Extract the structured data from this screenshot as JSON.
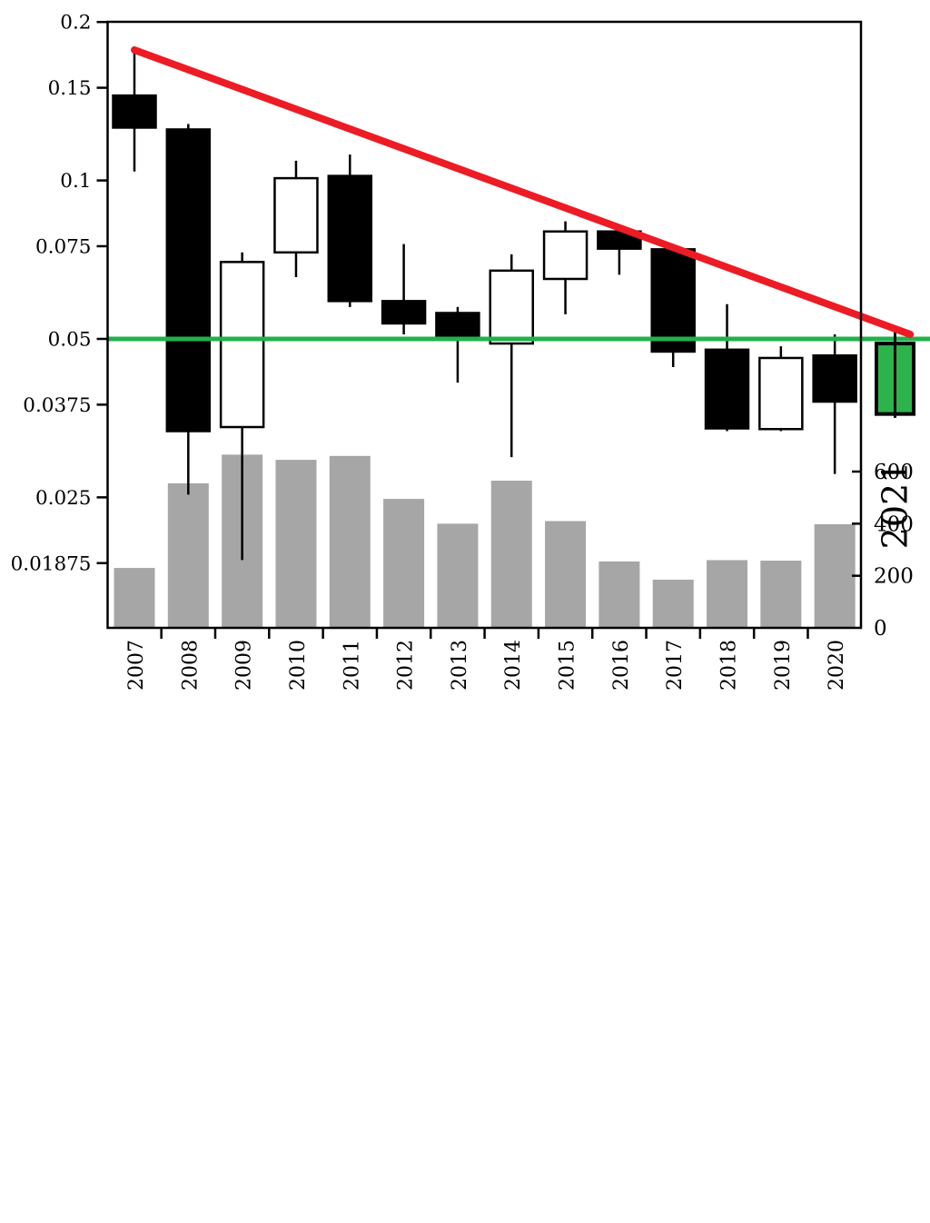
{
  "chart_data": {
    "type": "candlestick",
    "title": "",
    "x_years": [
      "2007",
      "2008",
      "2009",
      "2010",
      "2011",
      "2012",
      "2013",
      "2014",
      "2015",
      "2016",
      "2017",
      "2018",
      "2019",
      "2020"
    ],
    "last_year_label": "2021",
    "candles": [
      {
        "year": 2007,
        "open": 0.145,
        "high": 0.177,
        "low": 0.104,
        "close": 0.126,
        "direction": "down"
      },
      {
        "year": 2008,
        "open": 0.125,
        "high": 0.128,
        "low": 0.0253,
        "close": 0.0334,
        "direction": "down"
      },
      {
        "year": 2009,
        "open": 0.034,
        "high": 0.073,
        "low": 0.019,
        "close": 0.07,
        "direction": "up"
      },
      {
        "year": 2010,
        "open": 0.073,
        "high": 0.109,
        "low": 0.0655,
        "close": 0.101,
        "direction": "up"
      },
      {
        "year": 2011,
        "open": 0.102,
        "high": 0.112,
        "low": 0.0575,
        "close": 0.059,
        "direction": "down"
      },
      {
        "year": 2012,
        "open": 0.059,
        "high": 0.0757,
        "low": 0.051,
        "close": 0.0535,
        "direction": "down"
      },
      {
        "year": 2013,
        "open": 0.056,
        "high": 0.0575,
        "low": 0.0413,
        "close": 0.05,
        "direction": "down"
      },
      {
        "year": 2014,
        "open": 0.049,
        "high": 0.0724,
        "low": 0.0298,
        "close": 0.0674,
        "direction": "up"
      },
      {
        "year": 2015,
        "open": 0.065,
        "high": 0.0836,
        "low": 0.0557,
        "close": 0.08,
        "direction": "up"
      },
      {
        "year": 2016,
        "open": 0.08,
        "high": 0.08,
        "low": 0.0662,
        "close": 0.0742,
        "direction": "down"
      },
      {
        "year": 2017,
        "open": 0.074,
        "high": 0.074,
        "low": 0.0442,
        "close": 0.0473,
        "direction": "down"
      },
      {
        "year": 2018,
        "open": 0.0477,
        "high": 0.0582,
        "low": 0.0334,
        "close": 0.0338,
        "direction": "down"
      },
      {
        "year": 2019,
        "open": 0.0337,
        "high": 0.0484,
        "low": 0.0334,
        "close": 0.046,
        "direction": "up"
      },
      {
        "year": 2020,
        "open": 0.0465,
        "high": 0.051,
        "low": 0.0277,
        "close": 0.038,
        "direction": "down"
      },
      {
        "year": 2021,
        "open": 0.036,
        "high": 0.0524,
        "low": 0.0354,
        "close": 0.049,
        "direction": "up-highlight"
      }
    ],
    "volume": {
      "values": [
        230,
        555,
        665,
        645,
        660,
        495,
        400,
        565,
        410,
        255,
        185,
        260,
        258,
        398,
        null
      ],
      "axis_tick_labels": [
        "600",
        "400",
        "200",
        "0"
      ],
      "axis_tick_values": [
        600,
        400,
        200,
        0
      ]
    },
    "left_axis": {
      "scale": "log",
      "tick_labels": [
        "0.2",
        "0.15",
        "0.1",
        "0.075",
        "0.05",
        "0.0375",
        "0.025",
        "0.01875"
      ],
      "tick_values": [
        0.2,
        0.15,
        0.1,
        0.075,
        0.05,
        0.0375,
        0.025,
        0.01875
      ],
      "ylim": [
        0.0141,
        0.2
      ]
    },
    "overlays": {
      "support_line": {
        "type": "hline",
        "value": 0.05
      },
      "trendline": {
        "type": "segment",
        "x1_year": 2007,
        "price1": 0.177,
        "x2_year": 2021.4,
        "price2": 0.051
      }
    },
    "grid": "off",
    "legend": "none"
  },
  "colors": {
    "up_body": "#ffffff",
    "down_body": "#000000",
    "highlight_body": "#2db34b",
    "wick": "#000000",
    "volume_bar": "#a6a6a6",
    "support_line": "#22b14c",
    "trendline": "#ed1c24",
    "axis": "#000000",
    "background": "#ffffff"
  }
}
